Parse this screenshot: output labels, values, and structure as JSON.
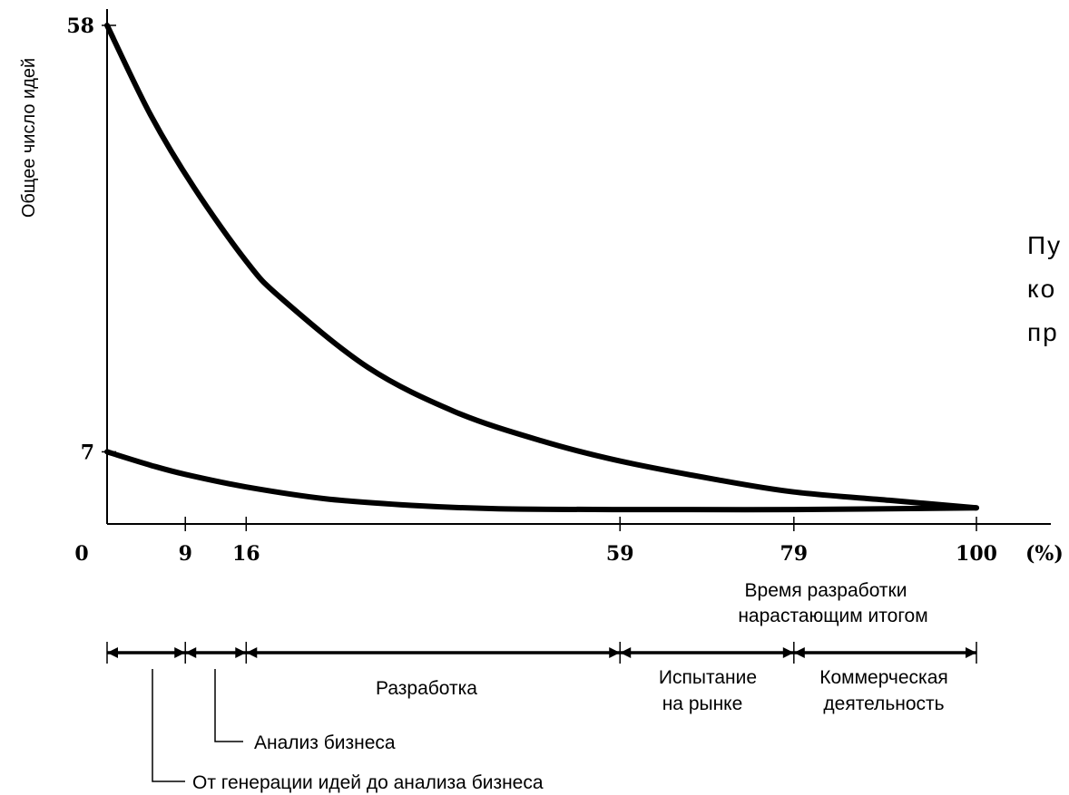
{
  "chart_data": {
    "type": "line",
    "ylabel": "Общее число идей",
    "xlabel_line1": "Время разработки",
    "xlabel_line2": "нарастающим итогом",
    "x_unit": "(%)",
    "x_ticks": [
      0,
      9,
      16,
      59,
      79,
      100
    ],
    "y_ticks": [
      7,
      58
    ],
    "xlim": [
      0,
      100
    ],
    "ylim": [
      0,
      58
    ],
    "grid": false,
    "series": [
      {
        "x": [
          0,
          5,
          10,
          16,
          20,
          30,
          40,
          50,
          59,
          70,
          79,
          90,
          100
        ],
        "values": [
          58,
          47.3,
          38.6,
          29.8,
          25.4,
          17.1,
          11.8,
          8.3,
          5.9,
          3.7,
          2.2,
          1.2,
          0.3
        ]
      },
      {
        "x": [
          0,
          5,
          9,
          16,
          25,
          35,
          45,
          59,
          79,
          100
        ],
        "values": [
          7,
          5.4,
          4.3,
          2.8,
          1.4,
          0.6,
          0.2,
          0.1,
          0.1,
          0.3
        ]
      }
    ],
    "stages": [
      {
        "from": 0,
        "to": 9
      },
      {
        "from": 9,
        "to": 16
      },
      {
        "from": 16,
        "to": 59,
        "label": "Разработка"
      },
      {
        "from": 59,
        "to": 79,
        "label_line1": "Испытание",
        "label_line2": "на рынке"
      },
      {
        "from": 79,
        "to": 100,
        "label_line1": "Коммерческая",
        "label_line2": "деятельность"
      }
    ],
    "callouts": {
      "analysis": "Анализ бизнеса",
      "generation": "От генерации идей до анализа бизнеса"
    }
  },
  "side_text": [
    "Пу",
    "ко",
    "пр"
  ]
}
